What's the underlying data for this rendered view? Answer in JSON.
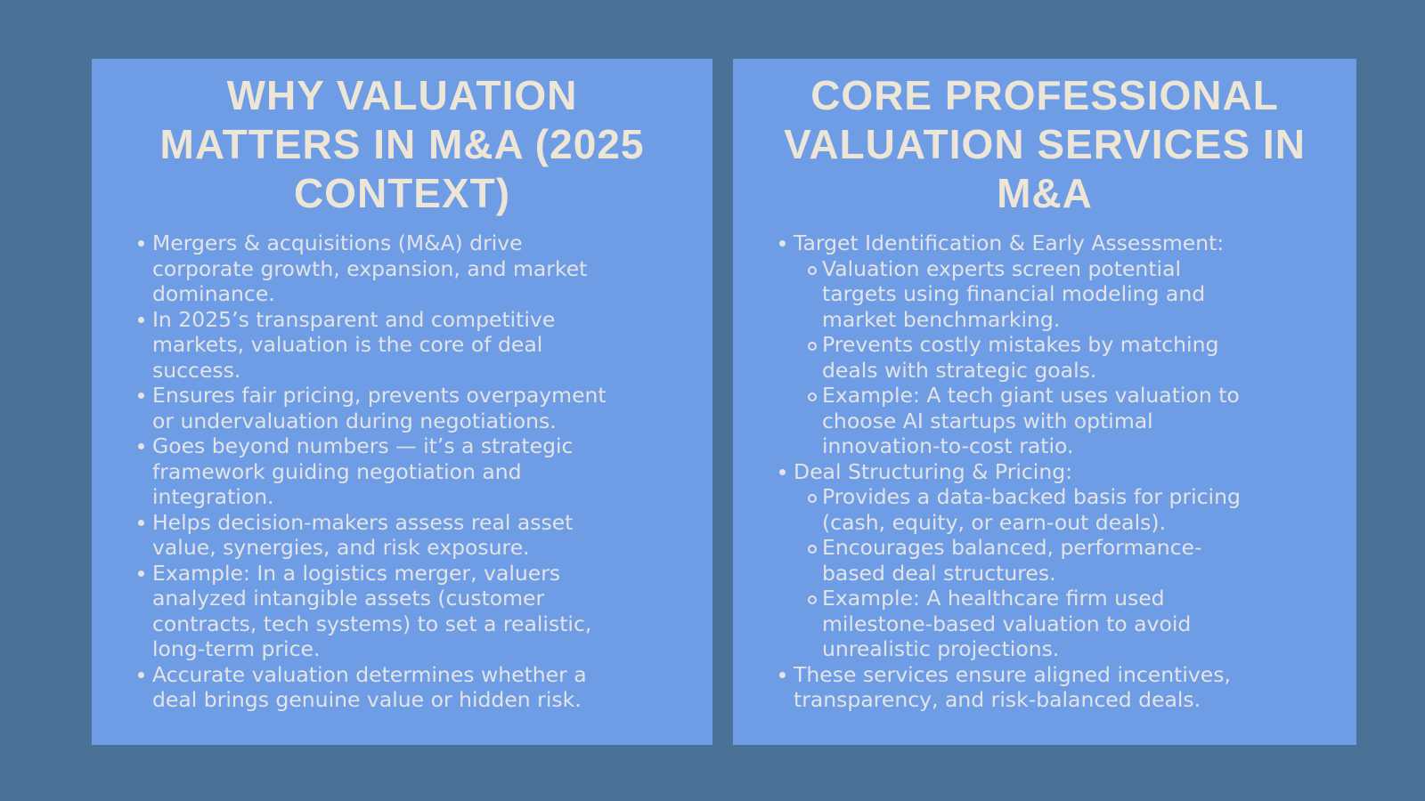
{
  "theme": {
    "background_color": "#4A7297",
    "card_color": "#6E9CE5",
    "title_color": "#EDE5D6",
    "body_color": "#E3E4E7"
  },
  "cards": [
    {
      "id": "why-valuation-matters",
      "title": "WHY VALUATION MATTERS IN M&A (2025 CONTEXT)",
      "title_lines": [
        "WHY VALUATION",
        "MATTERS IN M&A (2025",
        "CONTEXT)"
      ],
      "bullets": [
        {
          "level": 1,
          "lines": [
            "Mergers & acquisitions (M&A) drive",
            "corporate growth, expansion, and market",
            "dominance."
          ]
        },
        {
          "level": 1,
          "lines": [
            "In 2025’s transparent and competitive",
            "markets, valuation is the core of deal",
            "success."
          ]
        },
        {
          "level": 1,
          "lines": [
            "Ensures fair pricing, prevents overpayment",
            "or undervaluation during negotiations."
          ]
        },
        {
          "level": 1,
          "lines": [
            "Goes beyond numbers — it’s a strategic",
            "framework guiding negotiation and",
            "integration."
          ]
        },
        {
          "level": 1,
          "lines": [
            "Helps decision-makers assess real asset",
            "value, synergies, and risk exposure."
          ]
        },
        {
          "level": 1,
          "lines": [
            "Example: In a logistics merger, valuers",
            "analyzed intangible assets (customer",
            "contracts, tech systems) to set a realistic,",
            "long-term price."
          ]
        },
        {
          "level": 1,
          "lines": [
            "Accurate valuation determines whether a",
            "deal brings genuine value or hidden risk."
          ]
        }
      ]
    },
    {
      "id": "core-professional-valuation-services",
      "title": "CORE PROFESSIONAL VALUATION SERVICES IN M&A",
      "title_lines": [
        "CORE PROFESSIONAL",
        "VALUATION SERVICES IN",
        "M&A"
      ],
      "bullets": [
        {
          "level": 1,
          "lines": [
            "Target Identification & Early Assessment:"
          ]
        },
        {
          "level": 2,
          "lines": [
            "Valuation experts screen potential",
            "targets using financial modeling and",
            "market benchmarking."
          ]
        },
        {
          "level": 2,
          "lines": [
            "Prevents costly mistakes by matching",
            "deals with strategic goals."
          ]
        },
        {
          "level": 2,
          "lines": [
            "Example: A tech giant uses valuation to",
            "choose AI startups with optimal",
            "innovation-to-cost ratio."
          ]
        },
        {
          "level": 1,
          "lines": [
            "Deal Structuring & Pricing:"
          ]
        },
        {
          "level": 2,
          "lines": [
            "Provides a data-backed basis for pricing",
            "(cash, equity, or earn-out deals)."
          ]
        },
        {
          "level": 2,
          "lines": [
            "Encourages balanced, performance-",
            "based deal structures."
          ]
        },
        {
          "level": 2,
          "lines": [
            "Example: A healthcare firm used",
            "milestone-based valuation to avoid",
            "unrealistic projections."
          ]
        },
        {
          "level": 1,
          "lines": [
            "These services ensure aligned incentives,",
            "transparency, and risk-balanced deals."
          ]
        }
      ]
    }
  ]
}
